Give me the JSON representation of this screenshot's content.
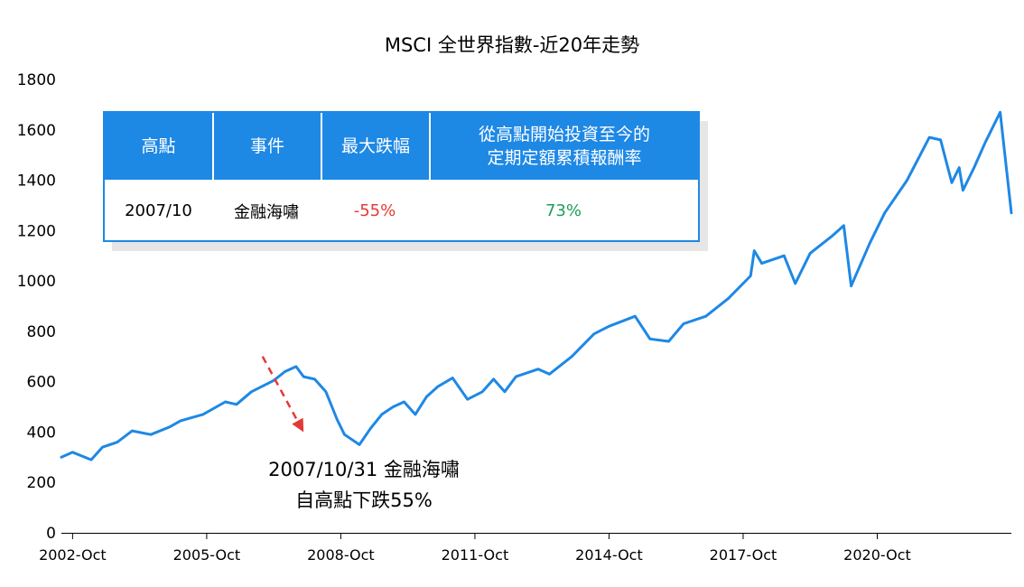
{
  "chart_data": {
    "type": "line",
    "title": "MSCI 全世界指數-近20年走勢",
    "xlabel": "",
    "ylabel": "",
    "ylim": [
      0,
      1800
    ],
    "yticks": [
      0,
      200,
      400,
      600,
      800,
      1000,
      1200,
      1400,
      1600,
      1800
    ],
    "xticks": [
      "2002-Oct",
      "2005-Oct",
      "2008-Oct",
      "2011-Oct",
      "2014-Oct",
      "2017-Oct",
      "2020-Oct"
    ],
    "xlim": [
      "2002-07",
      "2023-10"
    ],
    "grid": false,
    "line_color": "#1e88e5",
    "series": [
      {
        "x": [
          "2002-07",
          "2002-10",
          "2003-03",
          "2003-06",
          "2003-10",
          "2004-02",
          "2004-07",
          "2004-12",
          "2005-03",
          "2005-09",
          "2006-03",
          "2006-06",
          "2006-10",
          "2007-04",
          "2007-07",
          "2007-10",
          "2007-12",
          "2008-03",
          "2008-06",
          "2008-09",
          "2008-11",
          "2009-03",
          "2009-06",
          "2009-09",
          "2009-12",
          "2010-03",
          "2010-06",
          "2010-09",
          "2010-12",
          "2011-04",
          "2011-08",
          "2011-12",
          "2012-03",
          "2012-06",
          "2012-09",
          "2013-03",
          "2013-06",
          "2013-12",
          "2014-06",
          "2014-10",
          "2015-05",
          "2015-09",
          "2016-02",
          "2016-06",
          "2016-12",
          "2017-06",
          "2017-12",
          "2018-01",
          "2018-03",
          "2018-09",
          "2018-12",
          "2019-04",
          "2019-10",
          "2020-01",
          "2020-03",
          "2020-08",
          "2020-12",
          "2021-06",
          "2021-12",
          "2022-03",
          "2022-06",
          "2022-08",
          "2022-09",
          "2022-12",
          "2023-03",
          "2023-07",
          "2023-10"
        ],
        "values": [
          300,
          320,
          290,
          340,
          360,
          405,
          390,
          420,
          445,
          470,
          520,
          510,
          560,
          605,
          640,
          660,
          620,
          610,
          560,
          450,
          390,
          350,
          415,
          470,
          500,
          520,
          470,
          540,
          580,
          615,
          530,
          560,
          610,
          560,
          620,
          650,
          630,
          700,
          790,
          820,
          860,
          770,
          760,
          830,
          860,
          930,
          1020,
          1120,
          1070,
          1100,
          990,
          1110,
          1180,
          1220,
          980,
          1150,
          1270,
          1400,
          1570,
          1560,
          1390,
          1450,
          1360,
          1450,
          1550,
          1670,
          1270
        ]
      }
    ],
    "annotation": {
      "lines": [
        "2007/10/31 金融海嘯",
        "自高點下跌55%"
      ],
      "arrow_from": [
        "2007-01",
        700
      ],
      "arrow_to": [
        "2007-12",
        400
      ],
      "arrow_color": "#e53935"
    },
    "table": {
      "headers": [
        "高點",
        "事件",
        "最大跌幅",
        "從高點開始投資至今的定期定額累積報酬率"
      ],
      "header_col4_lines": [
        "從高點開始投資至今的",
        "定期定額累積報酬率"
      ],
      "row": [
        "2007/10",
        "金融海嘯",
        "-55%",
        "73%"
      ],
      "header_color": "#1e88e5",
      "negative_color": "#e53935",
      "positive_color": "#1b9e5a"
    }
  }
}
